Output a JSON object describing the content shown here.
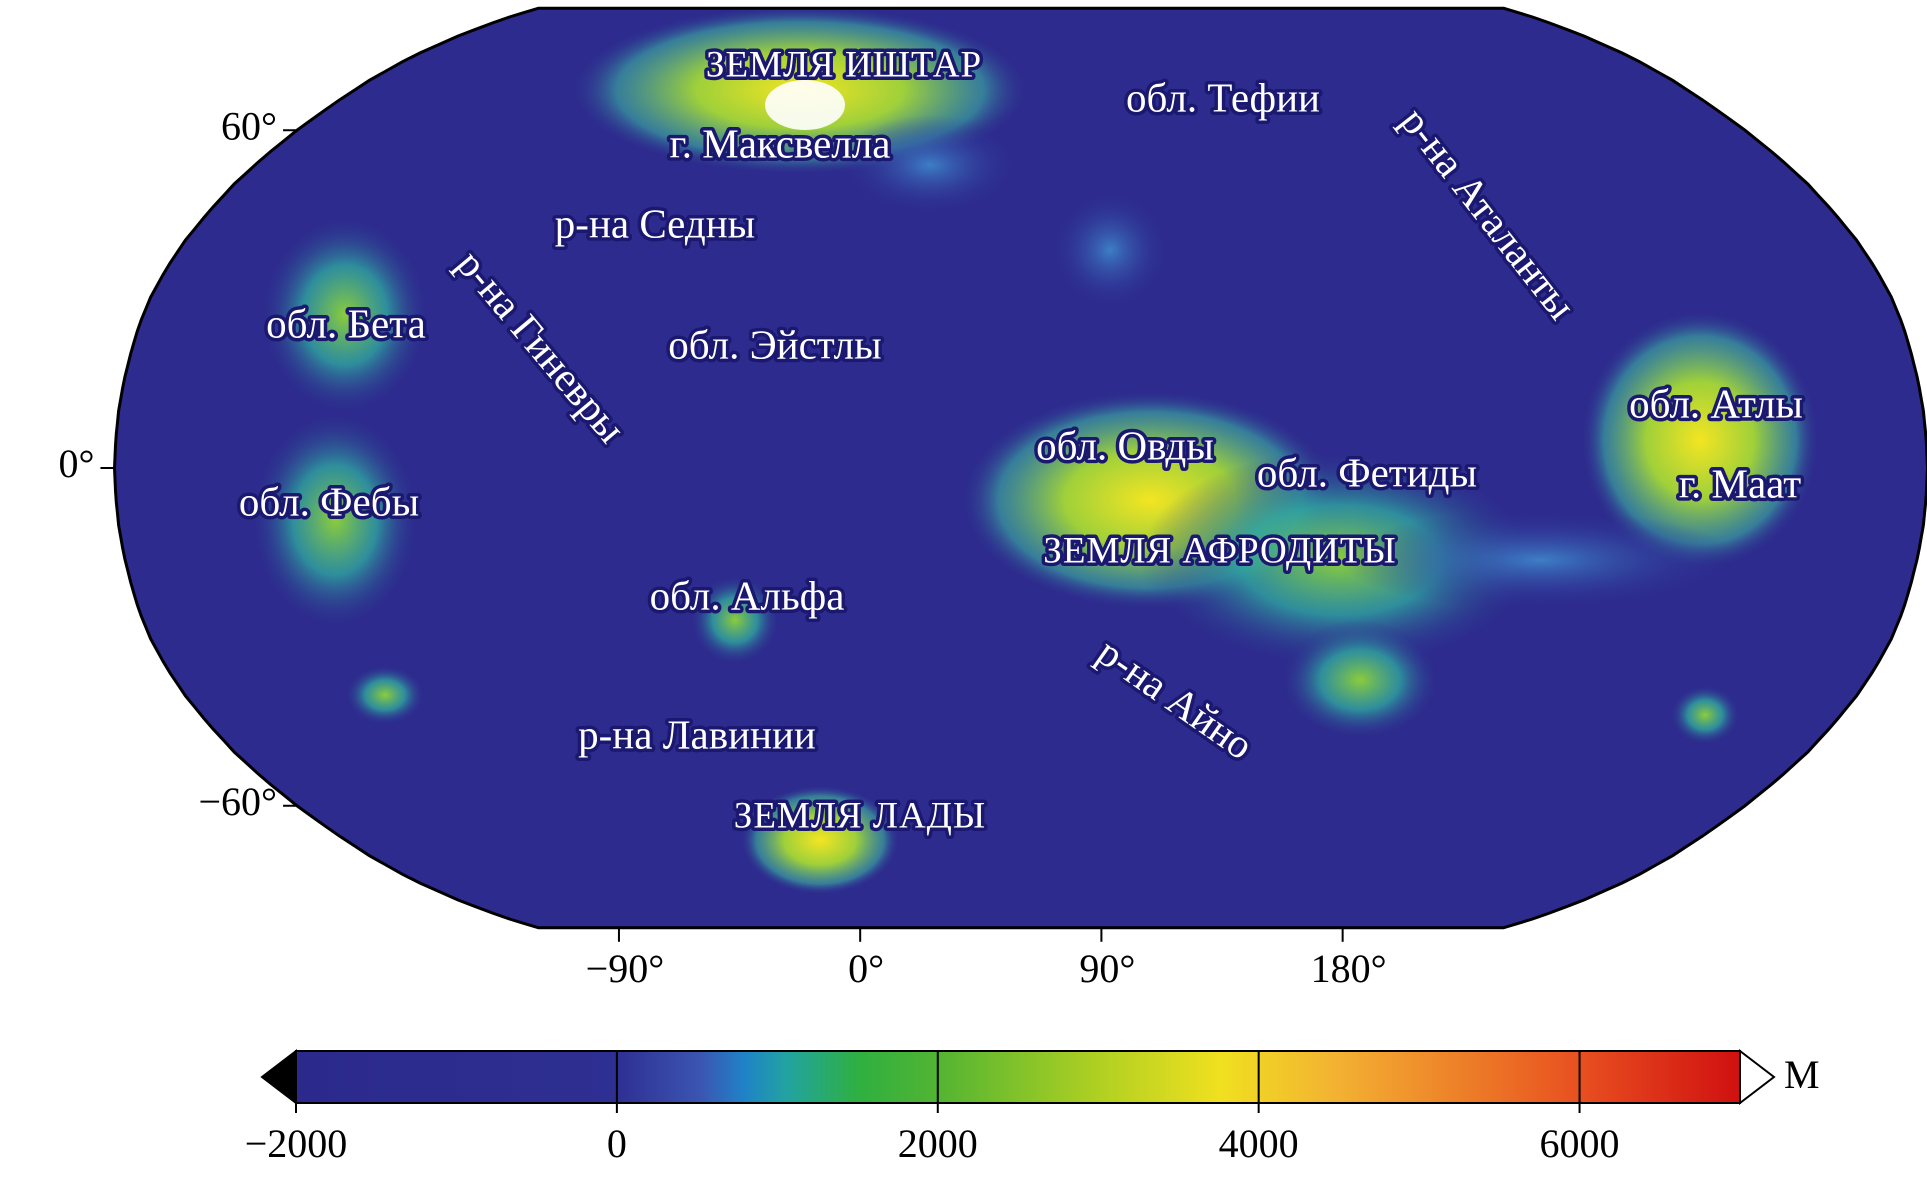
{
  "map": {
    "labels": [
      "ЗЕМЛЯ ИШТАР",
      "г. Максвелла",
      "обл. Тефии",
      "р-на Аталанты",
      "р-на Седны",
      "р-на Гиневры",
      "обл. Бета",
      "обл. Эйстлы",
      "обл. Атлы",
      "г. Маат",
      "обл. Овды",
      "обл. Фетиды",
      "обл. Фебы",
      "ЗЕМЛЯ АФРОДИТЫ",
      "обл. Альфа",
      "р-на Айно",
      "р-на Лавинии",
      "ЗЕМЛЯ ЛАДЫ"
    ],
    "lat_ticks": [
      {
        "value": 60,
        "label": "60°"
      },
      {
        "value": 0,
        "label": "0°"
      },
      {
        "value": -60,
        "label": "−60°"
      }
    ],
    "lon_ticks": [
      {
        "value": -90,
        "label": "−90°"
      },
      {
        "value": 0,
        "label": "0°"
      },
      {
        "value": 90,
        "label": "90°"
      },
      {
        "value": 180,
        "label": "180°"
      }
    ]
  },
  "colorbar": {
    "lim": [
      -2000,
      7000
    ],
    "ticks": [
      {
        "value": -2000,
        "label": "−2000"
      },
      0,
      2000,
      4000,
      6000
    ],
    "unit": "М"
  }
}
